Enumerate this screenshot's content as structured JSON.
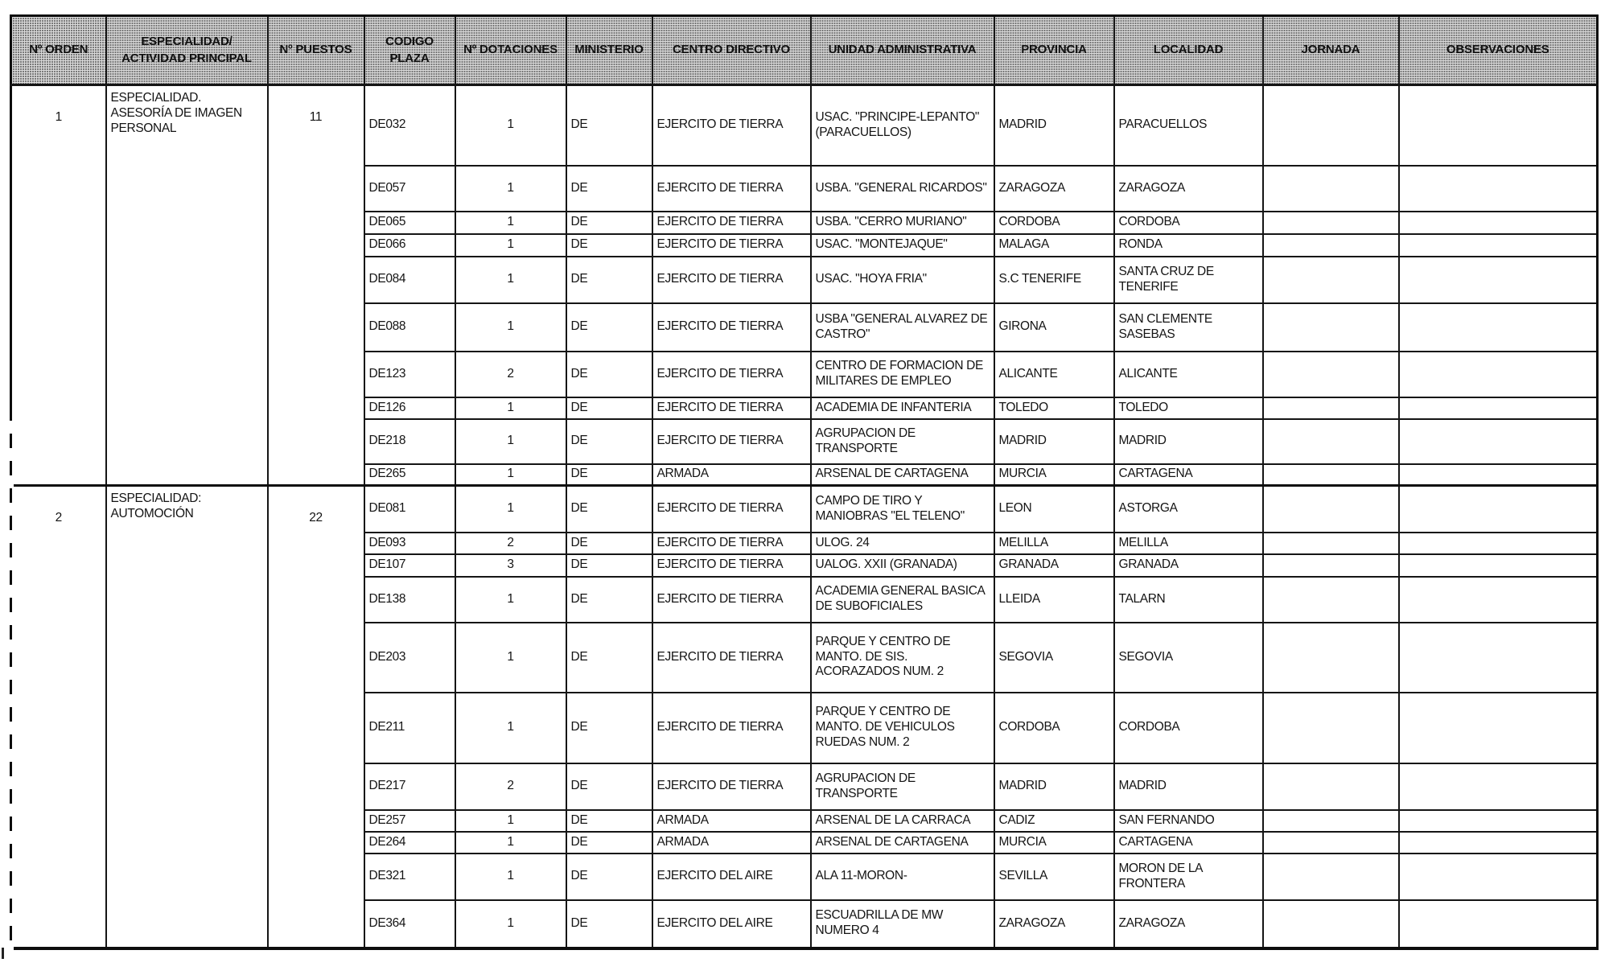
{
  "document": {
    "kind": "scanned-table-page",
    "language": "es",
    "colors": {
      "ink": "#141414",
      "paper": "#ffffff",
      "header_fill": "#dadada"
    }
  },
  "table": {
    "columns": [
      "Nº ORDEN",
      "ESPECIALIDAD/ ACTIVIDAD PRINCIPAL",
      "Nº PUESTOS",
      "CODIGO PLAZA",
      "Nº DOTACIONES",
      "MINISTERIO",
      "CENTRO DIRECTIVO",
      "UNIDAD ADMINISTRATIVA",
      "PROVINCIA",
      "LOCALIDAD",
      "JORNADA",
      "OBSERVACIONES"
    ],
    "groups": [
      {
        "orden": "1",
        "especialidad": "ESPECIALIDAD.\nASESORÍA DE IMAGEN\nPERSONAL",
        "puestos": "11",
        "rows": [
          {
            "codigo": "DE032",
            "dotaciones": "1",
            "ministerio": "DE",
            "centro": "EJERCITO DE TIERRA",
            "unidad": "USAC. \"PRINCIPE-LEPANTO\" (PARACUELLOS)",
            "provincia": "MADRID",
            "localidad": "PARACUELLOS",
            "jornada": "",
            "observaciones": ""
          },
          {
            "codigo": "DE057",
            "dotaciones": "1",
            "ministerio": "DE",
            "centro": "EJERCITO DE TIERRA",
            "unidad": "USBA. \"GENERAL RICARDOS\"",
            "provincia": "ZARAGOZA",
            "localidad": "ZARAGOZA",
            "jornada": "",
            "observaciones": ""
          },
          {
            "codigo": "DE065",
            "dotaciones": "1",
            "ministerio": "DE",
            "centro": "EJERCITO DE TIERRA",
            "unidad": "USBA. \"CERRO MURIANO\"",
            "provincia": "CORDOBA",
            "localidad": "CORDOBA",
            "jornada": "",
            "observaciones": ""
          },
          {
            "codigo": "DE066",
            "dotaciones": "1",
            "ministerio": "DE",
            "centro": "EJERCITO DE TIERRA",
            "unidad": "USAC. \"MONTEJAQUE\"",
            "provincia": "MALAGA",
            "localidad": "RONDA",
            "jornada": "",
            "observaciones": ""
          },
          {
            "codigo": "DE084",
            "dotaciones": "1",
            "ministerio": "DE",
            "centro": "EJERCITO DE TIERRA",
            "unidad": "USAC. \"HOYA FRIA\"",
            "provincia": "S.C TENERIFE",
            "localidad": "SANTA CRUZ DE TENERIFE",
            "jornada": "",
            "observaciones": ""
          },
          {
            "codigo": "DE088",
            "dotaciones": "1",
            "ministerio": "DE",
            "centro": "EJERCITO DE TIERRA",
            "unidad": "USBA \"GENERAL ALVAREZ DE CASTRO\"",
            "provincia": "GIRONA",
            "localidad": "SAN CLEMENTE SASEBAS",
            "jornada": "",
            "observaciones": ""
          },
          {
            "codigo": "DE123",
            "dotaciones": "2",
            "ministerio": "DE",
            "centro": "EJERCITO DE TIERRA",
            "unidad": "CENTRO DE FORMACION DE MILITARES DE EMPLEO",
            "provincia": "ALICANTE",
            "localidad": "ALICANTE",
            "jornada": "",
            "observaciones": ""
          },
          {
            "codigo": "DE126",
            "dotaciones": "1",
            "ministerio": "DE",
            "centro": "EJERCITO DE TIERRA",
            "unidad": "ACADEMIA DE INFANTERIA",
            "provincia": "TOLEDO",
            "localidad": "TOLEDO",
            "jornada": "",
            "observaciones": ""
          },
          {
            "codigo": "DE218",
            "dotaciones": "1",
            "ministerio": "DE",
            "centro": "EJERCITO DE TIERRA",
            "unidad": "AGRUPACION DE TRANSPORTE",
            "provincia": "MADRID",
            "localidad": "MADRID",
            "jornada": "",
            "observaciones": ""
          },
          {
            "codigo": "DE265",
            "dotaciones": "1",
            "ministerio": "DE",
            "centro": "ARMADA",
            "unidad": "ARSENAL DE CARTAGENA",
            "provincia": "MURCIA",
            "localidad": "CARTAGENA",
            "jornada": "",
            "observaciones": ""
          }
        ]
      },
      {
        "orden": "2",
        "especialidad": "ESPECIALIDAD:\nAUTOMOCIÓN",
        "puestos": "22",
        "rows": [
          {
            "codigo": "DE081",
            "dotaciones": "1",
            "ministerio": "DE",
            "centro": "EJERCITO DE TIERRA",
            "unidad": "CAMPO DE TIRO Y MANIOBRAS \"EL TELENO\"",
            "provincia": "LEON",
            "localidad": "ASTORGA",
            "jornada": "",
            "observaciones": ""
          },
          {
            "codigo": "DE093",
            "dotaciones": "2",
            "ministerio": "DE",
            "centro": "EJERCITO DE TIERRA",
            "unidad": "ULOG. 24",
            "provincia": "MELILLA",
            "localidad": "MELILLA",
            "jornada": "",
            "observaciones": ""
          },
          {
            "codigo": "DE107",
            "dotaciones": "3",
            "ministerio": "DE",
            "centro": "EJERCITO DE TIERRA",
            "unidad": "UALOG. XXII (GRANADA)",
            "provincia": "GRANADA",
            "localidad": "GRANADA",
            "jornada": "",
            "observaciones": ""
          },
          {
            "codigo": "DE138",
            "dotaciones": "1",
            "ministerio": "DE",
            "centro": "EJERCITO DE TIERRA",
            "unidad": "ACADEMIA GENERAL BASICA DE SUBOFICIALES",
            "provincia": "LLEIDA",
            "localidad": "TALARN",
            "jornada": "",
            "observaciones": ""
          },
          {
            "codigo": "DE203",
            "dotaciones": "1",
            "ministerio": "DE",
            "centro": "EJERCITO DE TIERRA",
            "unidad": "PARQUE Y CENTRO DE MANTO. DE SIS. ACORAZADOS NUM. 2",
            "provincia": "SEGOVIA",
            "localidad": "SEGOVIA",
            "jornada": "",
            "observaciones": ""
          },
          {
            "codigo": "DE211",
            "dotaciones": "1",
            "ministerio": "DE",
            "centro": "EJERCITO DE TIERRA",
            "unidad": "PARQUE Y CENTRO DE MANTO. DE VEHICULOS RUEDAS NUM. 2",
            "provincia": "CORDOBA",
            "localidad": "CORDOBA",
            "jornada": "",
            "observaciones": ""
          },
          {
            "codigo": "DE217",
            "dotaciones": "2",
            "ministerio": "DE",
            "centro": "EJERCITO DE TIERRA",
            "unidad": "AGRUPACION DE TRANSPORTE",
            "provincia": "MADRID",
            "localidad": "MADRID",
            "jornada": "",
            "observaciones": ""
          },
          {
            "codigo": "DE257",
            "dotaciones": "1",
            "ministerio": "DE",
            "centro": "ARMADA",
            "unidad": "ARSENAL DE LA CARRACA",
            "provincia": "CADIZ",
            "localidad": "SAN FERNANDO",
            "jornada": "",
            "observaciones": ""
          },
          {
            "codigo": "DE264",
            "dotaciones": "1",
            "ministerio": "DE",
            "centro": "ARMADA",
            "unidad": "ARSENAL DE CARTAGENA",
            "provincia": "MURCIA",
            "localidad": "CARTAGENA",
            "jornada": "",
            "observaciones": ""
          },
          {
            "codigo": "DE321",
            "dotaciones": "1",
            "ministerio": "DE",
            "centro": "EJERCITO DEL AIRE",
            "unidad": "ALA 11-MORON-",
            "provincia": "SEVILLA",
            "localidad": "MORON DE LA FRONTERA",
            "jornada": "",
            "observaciones": ""
          },
          {
            "codigo": "DE364",
            "dotaciones": "1",
            "ministerio": "DE",
            "centro": "EJERCITO DEL AIRE",
            "unidad": "ESCUADRILLA DE MW NUMERO 4",
            "provincia": "ZARAGOZA",
            "localidad": "ZARAGOZA",
            "jornada": "",
            "observaciones": ""
          }
        ]
      }
    ]
  }
}
